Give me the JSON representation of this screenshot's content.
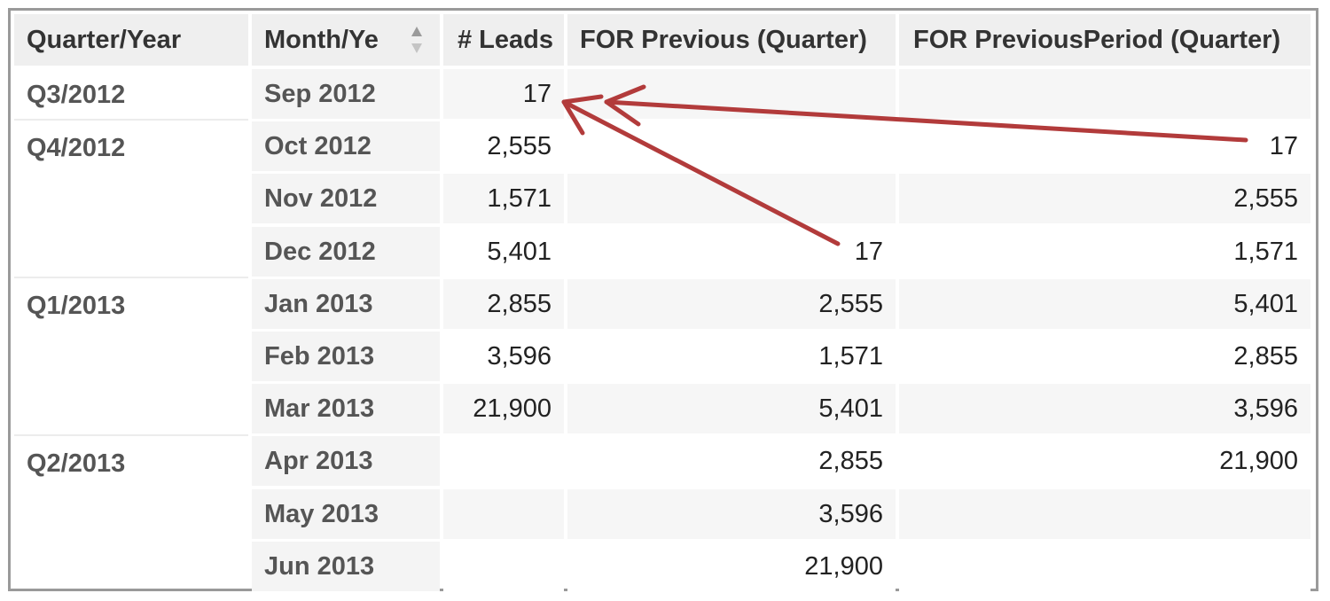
{
  "header": {
    "col_quarter": "Quarter/Year",
    "col_month": "Month/Ye",
    "col_leads": "# Leads",
    "col_previous": "FOR Previous (Quarter)",
    "col_previous_period": "FOR PreviousPeriod (Quarter)"
  },
  "quarters": [
    "Q3/2012",
    "Q4/2012",
    "Q1/2013",
    "Q2/2013"
  ],
  "rows": [
    {
      "month": "Sep 2012",
      "leads": "17",
      "previous": "",
      "previous_period": ""
    },
    {
      "month": "Oct 2012",
      "leads": "2,555",
      "previous": "",
      "previous_period": "17"
    },
    {
      "month": "Nov 2012",
      "leads": "1,571",
      "previous": "",
      "previous_period": "2,555"
    },
    {
      "month": "Dec 2012",
      "leads": "5,401",
      "previous": "17",
      "previous_period": "1,571"
    },
    {
      "month": "Jan 2013",
      "leads": "2,855",
      "previous": "2,555",
      "previous_period": "5,401"
    },
    {
      "month": "Feb 2013",
      "leads": "3,596",
      "previous": "1,571",
      "previous_period": "2,855"
    },
    {
      "month": "Mar 2013",
      "leads": "21,900",
      "previous": "5,401",
      "previous_period": "3,596"
    },
    {
      "month": "Apr 2013",
      "leads": "",
      "previous": "2,855",
      "previous_period": "21,900"
    },
    {
      "month": "May 2013",
      "leads": "",
      "previous": "3,596",
      "previous_period": ""
    },
    {
      "month": "Jun 2013",
      "leads": "",
      "previous": "21,900",
      "previous_period": ""
    }
  ],
  "colors": {
    "annotation_arrow": "#b23b3b",
    "header_bg": "#efefef",
    "row_alt_bg": "#f6f6f6"
  },
  "icons": {
    "sort": "sort-updown-icon"
  }
}
